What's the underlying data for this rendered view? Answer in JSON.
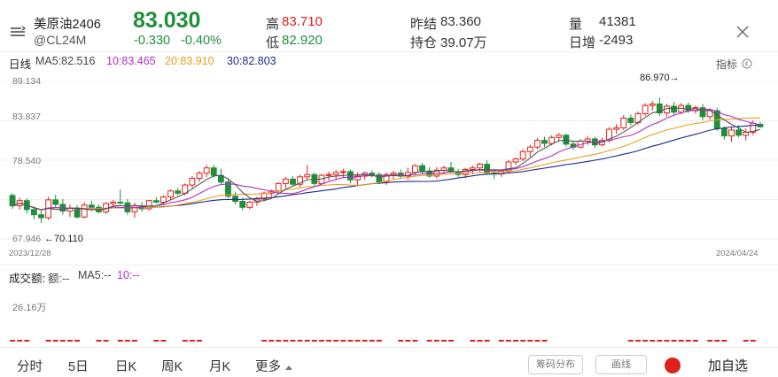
{
  "header": {
    "name": "美原油2406",
    "code": "@CL24M",
    "price": "83.030",
    "change": "-0.330",
    "change_pct": "-0.40%",
    "high_label": "高",
    "high": "83.710",
    "low_label": "低",
    "low": "82.920",
    "prev_close_label": "昨结",
    "prev_close": "83.360",
    "open_interest_label": "持仓",
    "open_interest": "39.07万",
    "volume_label": "量",
    "volume": "41381",
    "daily_change_label": "日增",
    "daily_change": "-2493"
  },
  "ma_bar": {
    "period": "日线",
    "ma5": "MA5:82.516",
    "ma10": "10:83.465",
    "ma20": "20:83.910",
    "ma30": "30:82.803",
    "indicator_label": "指标"
  },
  "colors": {
    "up": "#e0201c",
    "down": "#1f8f3a",
    "ma5": "#555555",
    "ma10": "#b030c8",
    "ma20": "#e8a020",
    "ma30": "#1c2a8c"
  },
  "chart": {
    "y_labels": [
      "89.134",
      "83.837",
      "78.540",
      "67.946"
    ],
    "max_annotation": "86.970→",
    "min_annotation": "←70.110",
    "start_date": "2023/12/28",
    "end_date": "2024/04/24"
  },
  "volume_bar": {
    "title": "成交额:",
    "amount": "额:--",
    "ma5": "MA5:--",
    "ma10": "10:--",
    "scale_label": "26.16万"
  },
  "tabs": [
    "分时",
    "5日",
    "日K",
    "周K",
    "月K",
    "更多"
  ],
  "active_tab": "日K",
  "buttons": {
    "chip_distribution": "筹码分布",
    "draw_line": "画线",
    "add_watchlist": "加自选"
  },
  "icons": [
    "menu-lines-icon",
    "close-icon",
    "indicator-chevron-icon",
    "triangle-up-icon",
    "record-dot-icon"
  ],
  "chart_data": {
    "type": "candlestick",
    "y_range": [
      67.946,
      89.134
    ],
    "x_range": [
      "2023/12/28",
      "2024/04/24"
    ],
    "max_label_value": 86.97,
    "min_label_value": 70.11,
    "ohlc": [
      [
        73.8,
        74.1,
        72.0,
        72.4
      ],
      [
        72.4,
        73.5,
        71.9,
        73.1
      ],
      [
        73.1,
        73.4,
        71.4,
        71.9
      ],
      [
        71.9,
        72.3,
        70.6,
        71.2
      ],
      [
        71.2,
        71.8,
        70.1,
        70.8
      ],
      [
        70.8,
        73.6,
        70.5,
        73.2
      ],
      [
        73.2,
        73.9,
        72.1,
        72.6
      ],
      [
        72.6,
        73.3,
        71.2,
        71.7
      ],
      [
        71.7,
        72.6,
        70.9,
        72.1
      ],
      [
        72.1,
        72.5,
        70.7,
        70.9
      ],
      [
        70.9,
        72.9,
        70.7,
        72.5
      ],
      [
        72.5,
        73.1,
        71.7,
        72.2
      ],
      [
        72.2,
        72.6,
        71.4,
        71.6
      ],
      [
        71.6,
        72.9,
        71.3,
        72.7
      ],
      [
        72.7,
        73.2,
        72.1,
        72.9
      ],
      [
        72.9,
        74.6,
        72.6,
        72.8
      ],
      [
        72.8,
        73.3,
        71.2,
        71.6
      ],
      [
        71.6,
        72.8,
        70.8,
        72.4
      ],
      [
        72.4,
        72.9,
        71.6,
        72.0
      ],
      [
        72.0,
        73.2,
        71.8,
        73.1
      ],
      [
        73.1,
        73.6,
        72.7,
        72.9
      ],
      [
        72.9,
        73.8,
        72.5,
        73.6
      ],
      [
        73.6,
        74.6,
        73.2,
        74.4
      ],
      [
        74.4,
        74.8,
        73.8,
        74.1
      ],
      [
        74.1,
        75.4,
        73.8,
        75.2
      ],
      [
        75.2,
        76.4,
        74.8,
        76.1
      ],
      [
        76.1,
        77.1,
        75.6,
        76.8
      ],
      [
        76.8,
        77.9,
        76.3,
        77.5
      ],
      [
        77.5,
        77.9,
        76.2,
        76.5
      ],
      [
        76.5,
        77.4,
        75.3,
        75.6
      ],
      [
        75.6,
        76.1,
        73.4,
        73.7
      ],
      [
        73.7,
        74.3,
        72.6,
        73.0
      ],
      [
        73.0,
        73.5,
        71.8,
        72.2
      ],
      [
        72.2,
        73.1,
        71.9,
        72.9
      ],
      [
        72.9,
        73.6,
        72.4,
        73.3
      ],
      [
        73.3,
        74.3,
        73.1,
        74.1
      ],
      [
        74.1,
        74.6,
        73.4,
        74.4
      ],
      [
        74.4,
        75.6,
        74.1,
        75.4
      ],
      [
        75.4,
        76.3,
        74.8,
        76.0
      ],
      [
        76.0,
        76.4,
        75.0,
        75.3
      ],
      [
        75.3,
        76.6,
        74.9,
        76.3
      ],
      [
        76.3,
        77.9,
        75.9,
        76.6
      ],
      [
        76.6,
        76.9,
        75.1,
        75.4
      ],
      [
        75.4,
        76.7,
        75.1,
        76.5
      ],
      [
        76.5,
        77.0,
        75.8,
        76.6
      ],
      [
        76.6,
        77.2,
        76.0,
        76.9
      ],
      [
        76.9,
        77.4,
        76.2,
        77.0
      ],
      [
        77.0,
        77.3,
        75.4,
        75.9
      ],
      [
        75.9,
        76.9,
        75.2,
        76.4
      ],
      [
        76.4,
        77.0,
        75.9,
        76.8
      ],
      [
        76.8,
        77.2,
        76.2,
        76.6
      ],
      [
        76.6,
        76.9,
        75.3,
        75.6
      ],
      [
        75.6,
        76.9,
        75.2,
        76.6
      ],
      [
        76.6,
        77.1,
        76.0,
        76.8
      ],
      [
        76.8,
        77.3,
        76.0,
        76.4
      ],
      [
        76.4,
        77.5,
        75.9,
        76.9
      ],
      [
        76.9,
        78.0,
        76.5,
        77.8
      ],
      [
        77.8,
        78.2,
        76.7,
        77.1
      ],
      [
        77.1,
        77.6,
        76.2,
        76.4
      ],
      [
        76.4,
        77.6,
        76.1,
        77.2
      ],
      [
        77.2,
        77.8,
        76.6,
        77.5
      ],
      [
        77.5,
        78.3,
        76.8,
        77.0
      ],
      [
        77.0,
        77.4,
        76.3,
        76.6
      ],
      [
        76.6,
        77.5,
        76.1,
        77.3
      ],
      [
        77.3,
        77.8,
        76.6,
        77.5
      ],
      [
        77.5,
        78.2,
        77.0,
        78.0
      ],
      [
        78.0,
        78.5,
        76.6,
        76.8
      ],
      [
        76.8,
        77.2,
        76.0,
        76.7
      ],
      [
        76.7,
        77.3,
        76.3,
        77.1
      ],
      [
        77.1,
        78.6,
        76.9,
        78.3
      ],
      [
        78.3,
        78.9,
        77.9,
        78.7
      ],
      [
        78.7,
        80.0,
        78.4,
        79.7
      ],
      [
        79.7,
        80.6,
        79.0,
        80.3
      ],
      [
        80.3,
        81.5,
        80.0,
        81.2
      ],
      [
        81.2,
        81.7,
        80.3,
        80.8
      ],
      [
        80.8,
        81.9,
        80.5,
        81.6
      ],
      [
        81.6,
        82.2,
        81.0,
        81.9
      ],
      [
        81.9,
        82.1,
        80.4,
        80.7
      ],
      [
        80.7,
        81.2,
        79.9,
        80.3
      ],
      [
        80.3,
        81.4,
        80.1,
        81.1
      ],
      [
        81.1,
        81.8,
        80.6,
        81.4
      ],
      [
        81.4,
        81.7,
        80.2,
        80.6
      ],
      [
        80.6,
        81.6,
        80.4,
        81.2
      ],
      [
        81.2,
        83.0,
        80.9,
        82.7
      ],
      [
        82.7,
        83.4,
        82.1,
        82.9
      ],
      [
        82.9,
        84.6,
        82.6,
        84.2
      ],
      [
        84.2,
        84.7,
        83.2,
        83.6
      ],
      [
        83.6,
        85.1,
        83.3,
        84.8
      ],
      [
        84.8,
        86.2,
        84.5,
        85.9
      ],
      [
        85.9,
        86.5,
        85.2,
        86.1
      ],
      [
        86.1,
        86.97,
        84.5,
        84.9
      ],
      [
        84.9,
        86.1,
        84.4,
        85.8
      ],
      [
        85.8,
        86.4,
        84.7,
        85.0
      ],
      [
        85.0,
        86.2,
        84.7,
        85.9
      ],
      [
        85.9,
        86.3,
        84.9,
        85.2
      ],
      [
        85.2,
        85.9,
        84.8,
        85.6
      ],
      [
        85.6,
        86.1,
        83.9,
        84.4
      ],
      [
        84.4,
        85.5,
        84.0,
        85.2
      ],
      [
        85.2,
        85.6,
        82.5,
        82.8
      ],
      [
        82.8,
        83.1,
        81.3,
        81.8
      ],
      [
        81.8,
        83.0,
        81.0,
        82.6
      ],
      [
        82.6,
        83.2,
        81.6,
        81.9
      ],
      [
        81.9,
        82.8,
        81.2,
        82.3
      ],
      [
        82.3,
        83.9,
        81.9,
        83.5
      ],
      [
        83.36,
        83.71,
        82.92,
        83.03
      ]
    ],
    "ma_latest": {
      "MA5": 82.516,
      "MA10": 83.465,
      "MA20": 83.91,
      "MA30": 82.803
    },
    "volume_scale": "26.16万"
  }
}
